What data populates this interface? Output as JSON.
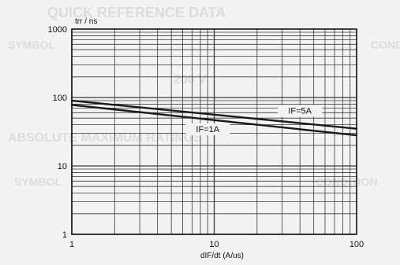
{
  "background_text": {
    "header": "QUICK REFERENCE DATA",
    "symbol_row": "SYMBOL",
    "condition_row": "CONDI",
    "vr_value": "200 V",
    "absolute_row": "ABSOLUTE MAXIMUM RATINGS",
    "symbol_row_2": "SYMBOL",
    "condition_row_2": "CONDITION"
  },
  "chart_data": {
    "type": "line",
    "xlabel": "dIF/dt (A/us)",
    "ylabel": "trr / ns",
    "xscale": "log",
    "yscale": "log",
    "xlim": [
      1,
      100
    ],
    "ylim": [
      1,
      1000
    ],
    "grid": true,
    "x_ticks": [
      "1",
      "10",
      "100"
    ],
    "y_ticks": [
      "1000",
      "100",
      "10",
      "1"
    ],
    "series": [
      {
        "name": "IF=5A",
        "x": [
          1,
          100
        ],
        "y": [
          90,
          35
        ]
      },
      {
        "name": "IF=1A",
        "x": [
          1,
          100
        ],
        "y": [
          78,
          28
        ]
      }
    ],
    "colors": {
      "line": "#1a1a1a",
      "grid": "#3a3a3a",
      "ghost": "#dcdcdc",
      "paper": "#f3f3f3"
    }
  }
}
